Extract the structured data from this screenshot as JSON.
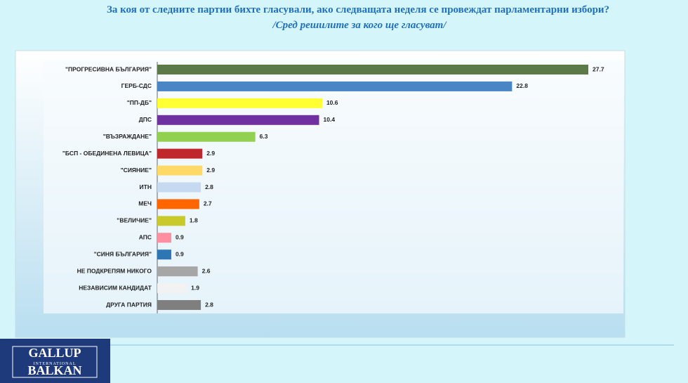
{
  "chart_data": {
    "type": "bar",
    "orientation": "horizontal",
    "title": "За коя от следните партии бихте  гласували,  ако следващата неделя се провеждат парламентарни избори?",
    "subtitle": "/Сред решилите за кого ще гласуват/",
    "categories": [
      "\"ПРОГРЕСИВНА БЪЛГАРИЯ\"",
      "ГЕРБ-СДС",
      "\"ПП-ДБ\"",
      "ДПС",
      "\"ВЪЗРАЖДАНЕ\"",
      "\"БСП - ОБЕДИНЕНА ЛЕВИЦА\"",
      "\"СИЯНИЕ\"",
      "ИТН",
      "МЕЧ",
      "\"ВЕЛИЧИЕ\"",
      "АПС",
      "\"СИНЯ БЪЛГАРИЯ\"",
      "НЕ ПОДКРЕПЯМ НИКОГО",
      "НЕЗАВИСИМ КАНДИДАТ",
      "ДРУГА ПАРТИЯ"
    ],
    "values": [
      27.7,
      22.8,
      10.6,
      10.4,
      6.3,
      2.9,
      2.9,
      2.8,
      2.7,
      1.8,
      0.9,
      0.9,
      2.6,
      1.9,
      2.8
    ],
    "colors": [
      "#5b7a48",
      "#4a86c5",
      "#ffff33",
      "#7030a0",
      "#92d050",
      "#c0272d",
      "#ffd966",
      "#c5d9f1",
      "#ff6600",
      "#c9c92c",
      "#ff8fa0",
      "#2e75b6",
      "#a6a6a6",
      "#f2f2f2",
      "#7f7f7f"
    ]
  },
  "logo": {
    "line1": "GALLUP",
    "line2": "INTERNATIONAL",
    "line3": "BALKAN"
  }
}
